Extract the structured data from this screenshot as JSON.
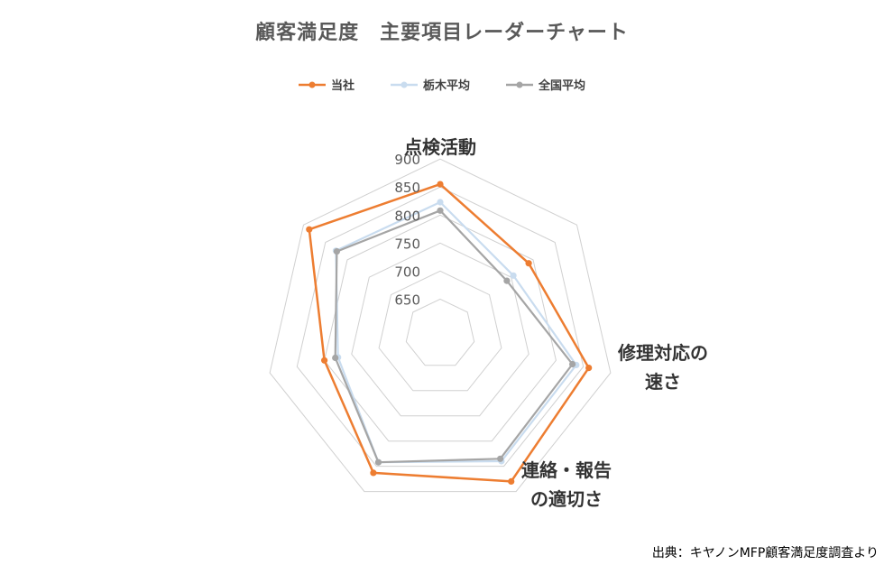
{
  "title": "顧客満足度　主要項目レーダーチャート",
  "source": "出典：キヤノンMFP顧客満足度調査より",
  "chart_data": {
    "type": "radar",
    "title": "顧客満足度　主要項目レーダーチャート",
    "axes": [
      "点検活動",
      "修理対応の速さ",
      "連絡・報告の適切さ",
      "",
      "",
      "",
      ""
    ],
    "axis_label_lines": [
      [
        "点検活動"
      ],
      [
        "修理対応の",
        "速さ"
      ],
      [
        "連絡・報告",
        "の適切さ"
      ],
      [
        ""
      ],
      [
        ""
      ],
      [
        ""
      ],
      [
        ""
      ]
    ],
    "rlim": [
      620,
      910
    ],
    "ticks": [
      650,
      700,
      750,
      800,
      850,
      900
    ],
    "grid": true,
    "legend_position": "top",
    "series": [
      {
        "name": "当社",
        "color": "#ED7D31",
        "values": [
          855,
          790,
          860,
          880,
          863,
          800,
          887
        ]
      },
      {
        "name": "栃木平均",
        "color": "#C9DCEF",
        "values": [
          823,
          755,
          837,
          840,
          842,
          775,
          826
        ]
      },
      {
        "name": "全国平均",
        "color": "#A5A5A5",
        "values": [
          808,
          740,
          830,
          835,
          842,
          780,
          824
        ]
      }
    ]
  }
}
